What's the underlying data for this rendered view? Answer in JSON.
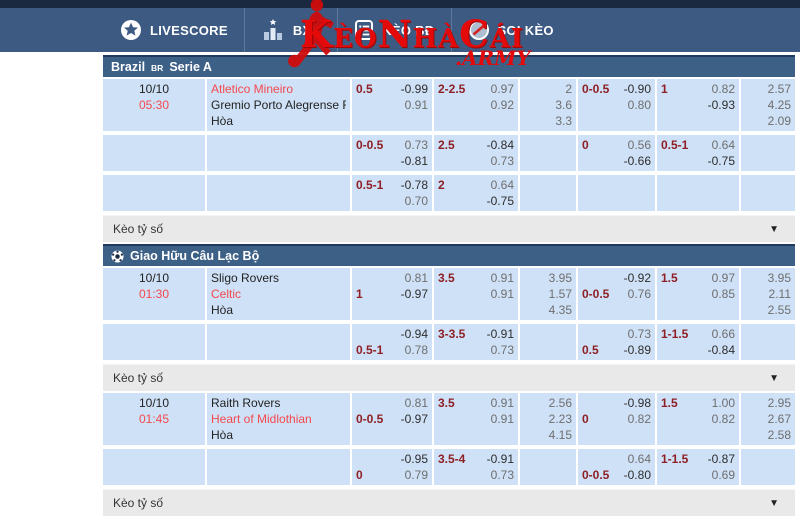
{
  "navbar": {
    "items": [
      {
        "label": "LIVESCORE",
        "icon": "livescore-star"
      },
      {
        "label": "BXH",
        "icon": "ranking-chart"
      },
      {
        "label": "KÈO BĐ",
        "icon": "odds-clipboard"
      },
      {
        "label": "SOI KÈO",
        "icon": "analysis-badge"
      }
    ],
    "logo": {
      "main": "KèoNhàCái",
      "suffix": ".ARMY"
    }
  },
  "labels": {
    "score_odds": "Kèo tỷ số"
  },
  "colors": {
    "navbar": "#3d5a83",
    "top_strip": "#1b2940",
    "league_header": "#3d6087",
    "cell_bg": "#cfe1f7",
    "accent_red": "#f4494d",
    "line_maroon": "#8e1f24",
    "logo_red": "#e50a0a"
  },
  "leagues": [
    {
      "title": {
        "prefix": "Brazil",
        "badge": "BR",
        "suffix": "Serie A"
      },
      "ball_icon": false,
      "matches": [
        {
          "date": "10/10",
          "time": "05:30",
          "home": {
            "name": "Atletico Mineiro",
            "red": true
          },
          "away": {
            "name": "Gremio Porto Alegrense RS",
            "red": false
          },
          "draw": "Hòa",
          "rows": [
            {
              "tall": true,
              "hdp": {
                "line": "0.5",
                "pos": 1,
                "odds": [
                  "-0.99",
                  "0.91"
                ]
              },
              "ou": {
                "line": "2-2.5",
                "pos": 1,
                "odds": [
                  "0.97",
                  "0.92"
                ]
              },
              "x2": [
                "2",
                "3.6",
                "3.3"
              ],
              "hdp2": {
                "line": "0-0.5",
                "pos": 1,
                "odds": [
                  "-0.90",
                  "0.80"
                ]
              },
              "ou2": {
                "line": "1",
                "pos": 1,
                "odds": [
                  "0.82",
                  "-0.93"
                ]
              },
              "x22": [
                "2.57",
                "4.25",
                "2.09"
              ]
            },
            {
              "tall": false,
              "hdp": {
                "line": "0-0.5",
                "pos": 1,
                "odds": [
                  "0.73",
                  "-0.81"
                ]
              },
              "ou": {
                "line": "2.5",
                "pos": 1,
                "odds": [
                  "-0.84",
                  "0.73"
                ]
              },
              "x2": [],
              "hdp2": {
                "line": "0",
                "pos": 1,
                "odds": [
                  "0.56",
                  "-0.66"
                ]
              },
              "ou2": {
                "line": "0.5-1",
                "pos": 1,
                "odds": [
                  "0.64",
                  "-0.75"
                ]
              },
              "x22": []
            },
            {
              "tall": false,
              "hdp": {
                "line": "0.5-1",
                "pos": 1,
                "odds": [
                  "-0.78",
                  "0.70"
                ]
              },
              "ou": {
                "line": "2",
                "pos": 1,
                "odds": [
                  "0.64",
                  "-0.75"
                ]
              },
              "x2": [],
              "hdp2": null,
              "ou2": null,
              "x22": []
            }
          ]
        }
      ]
    },
    {
      "title": {
        "prefix": "Giao Hữu Câu Lạc Bộ",
        "badge": "",
        "suffix": ""
      },
      "ball_icon": true,
      "matches": [
        {
          "date": "10/10",
          "time": "01:30",
          "home": {
            "name": "Sligo Rovers",
            "red": false
          },
          "away": {
            "name": "Celtic",
            "red": true
          },
          "draw": "Hòa",
          "rows": [
            {
              "tall": true,
              "hdp": {
                "line": "1",
                "pos": 2,
                "odds": [
                  "0.81",
                  "-0.97"
                ]
              },
              "ou": {
                "line": "3.5",
                "pos": 1,
                "odds": [
                  "0.91",
                  "0.91"
                ]
              },
              "x2": [
                "3.95",
                "1.57",
                "4.35"
              ],
              "hdp2": {
                "line": "0-0.5",
                "pos": 2,
                "odds": [
                  "-0.92",
                  "0.76"
                ]
              },
              "ou2": {
                "line": "1.5",
                "pos": 1,
                "odds": [
                  "0.97",
                  "0.85"
                ]
              },
              "x22": [
                "3.95",
                "2.11",
                "2.55"
              ]
            },
            {
              "tall": false,
              "hdp": {
                "line": "0.5-1",
                "pos": 2,
                "odds": [
                  "-0.94",
                  "0.78"
                ]
              },
              "ou": {
                "line": "3-3.5",
                "pos": 1,
                "odds": [
                  "-0.91",
                  "0.73"
                ]
              },
              "x2": [],
              "hdp2": {
                "line": "0.5",
                "pos": 2,
                "odds": [
                  "0.73",
                  "-0.89"
                ]
              },
              "ou2": {
                "line": "1-1.5",
                "pos": 1,
                "odds": [
                  "0.66",
                  "-0.84"
                ]
              },
              "x22": []
            }
          ]
        },
        {
          "date": "10/10",
          "time": "01:45",
          "home": {
            "name": "Raith Rovers",
            "red": false
          },
          "away": {
            "name": "Heart of Midlothian",
            "red": true
          },
          "draw": "Hòa",
          "rows": [
            {
              "tall": true,
              "hdp": {
                "line": "0-0.5",
                "pos": 2,
                "odds": [
                  "0.81",
                  "-0.97"
                ]
              },
              "ou": {
                "line": "3.5",
                "pos": 1,
                "odds": [
                  "0.91",
                  "0.91"
                ]
              },
              "x2": [
                "2.56",
                "2.23",
                "4.15"
              ],
              "hdp2": {
                "line": "0",
                "pos": 2,
                "odds": [
                  "-0.98",
                  "0.82"
                ]
              },
              "ou2": {
                "line": "1.5",
                "pos": 1,
                "odds": [
                  "1.00",
                  "0.82"
                ]
              },
              "x22": [
                "2.95",
                "2.67",
                "2.58"
              ]
            },
            {
              "tall": false,
              "hdp": {
                "line": "0",
                "pos": 2,
                "odds": [
                  "-0.95",
                  "0.79"
                ]
              },
              "ou": {
                "line": "3.5-4",
                "pos": 1,
                "odds": [
                  "-0.91",
                  "0.73"
                ]
              },
              "x2": [],
              "hdp2": {
                "line": "0-0.5",
                "pos": 2,
                "odds": [
                  "0.64",
                  "-0.80"
                ]
              },
              "ou2": {
                "line": "1-1.5",
                "pos": 1,
                "odds": [
                  "-0.87",
                  "0.69"
                ]
              },
              "x22": []
            }
          ]
        }
      ]
    }
  ]
}
